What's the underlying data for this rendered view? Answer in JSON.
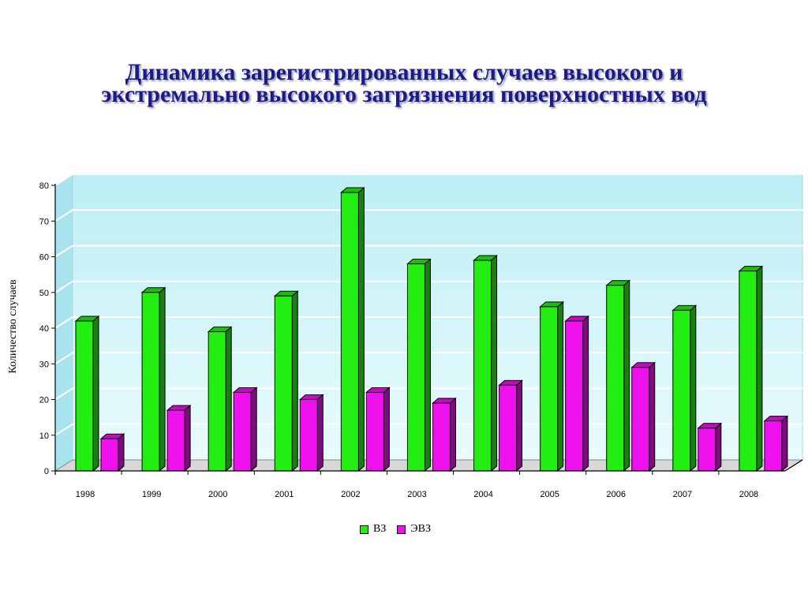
{
  "title": {
    "line1": "Динамика зарегистрированных случаев высокого и",
    "line2": "экстремально высокого загрязнения поверхностных вод"
  },
  "chart_data": {
    "type": "bar",
    "categories": [
      "1998",
      "1999",
      "2000",
      "2001",
      "2002",
      "2003",
      "2004",
      "2005",
      "2006",
      "2007",
      "2008"
    ],
    "series": [
      {
        "name": "ВЗ",
        "color": "#22ee11",
        "values": [
          42,
          50,
          39,
          49,
          78,
          58,
          59,
          46,
          52,
          45,
          56
        ]
      },
      {
        "name": "ЭВЗ",
        "color": "#ee11ee",
        "values": [
          9,
          17,
          22,
          20,
          22,
          19,
          24,
          42,
          29,
          12,
          14
        ]
      }
    ],
    "ylabel": "Количество случаев",
    "xlabel": "",
    "ylim": [
      0,
      80
    ],
    "yticks": [
      0,
      10,
      20,
      30,
      40,
      50,
      60,
      70,
      80
    ],
    "grid": true,
    "legend_position": "bottom",
    "style": "3d-bar",
    "plot_background": "#cdf3f8"
  }
}
